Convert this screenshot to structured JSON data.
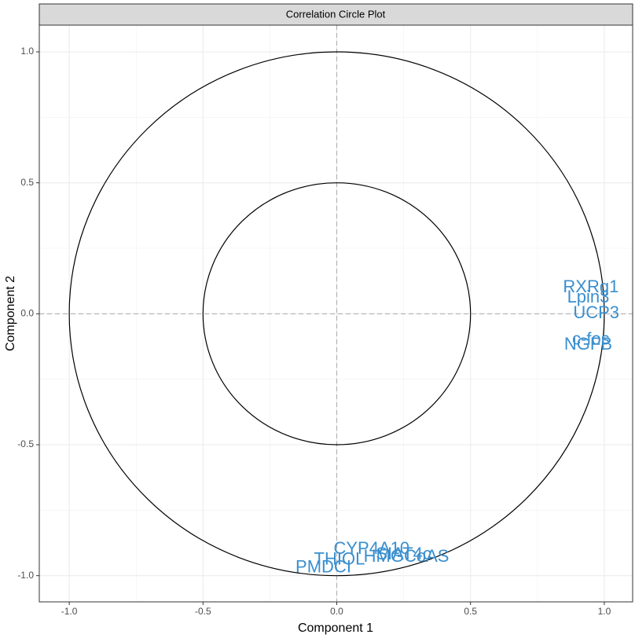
{
  "chart_data": {
    "type": "scatter",
    "title": "Correlation Circle Plot",
    "x_label": "Component  1",
    "y_label": "Component  2",
    "xlim": [
      -1.112,
      1.106
    ],
    "ylim": [
      -1.1,
      1.102
    ],
    "xticks": [
      {
        "value": -1,
        "label": "-1.0"
      },
      -0.5,
      {
        "value": 0,
        "label": "0.0"
      },
      0.5,
      {
        "value": 1,
        "label": "1.0"
      }
    ],
    "yticks": [
      {
        "value": -1,
        "label": "-1.0"
      },
      -0.5,
      {
        "value": 0,
        "label": "0.0"
      },
      0.5,
      {
        "value": 1,
        "label": "1.0"
      }
    ],
    "grid": true,
    "circles": [
      1,
      0.5
    ],
    "color": "#3a8fcf",
    "labels": [
      "RXRg1",
      "Lpin3",
      "UCP3",
      "c-fos",
      "NGFB",
      "CYP4A10",
      "THIOL",
      "HMGCoAS",
      "SIAT4c",
      "PMDCI"
    ],
    "x": [
      0.95,
      0.94,
      0.97,
      0.95,
      0.94,
      0.13,
      0.01,
      0.26,
      0.25,
      -0.05
    ],
    "y": [
      0.1,
      0.06,
      0.0,
      -0.1,
      -0.12,
      -0.9,
      -0.94,
      -0.93,
      -0.92,
      -0.97
    ]
  }
}
